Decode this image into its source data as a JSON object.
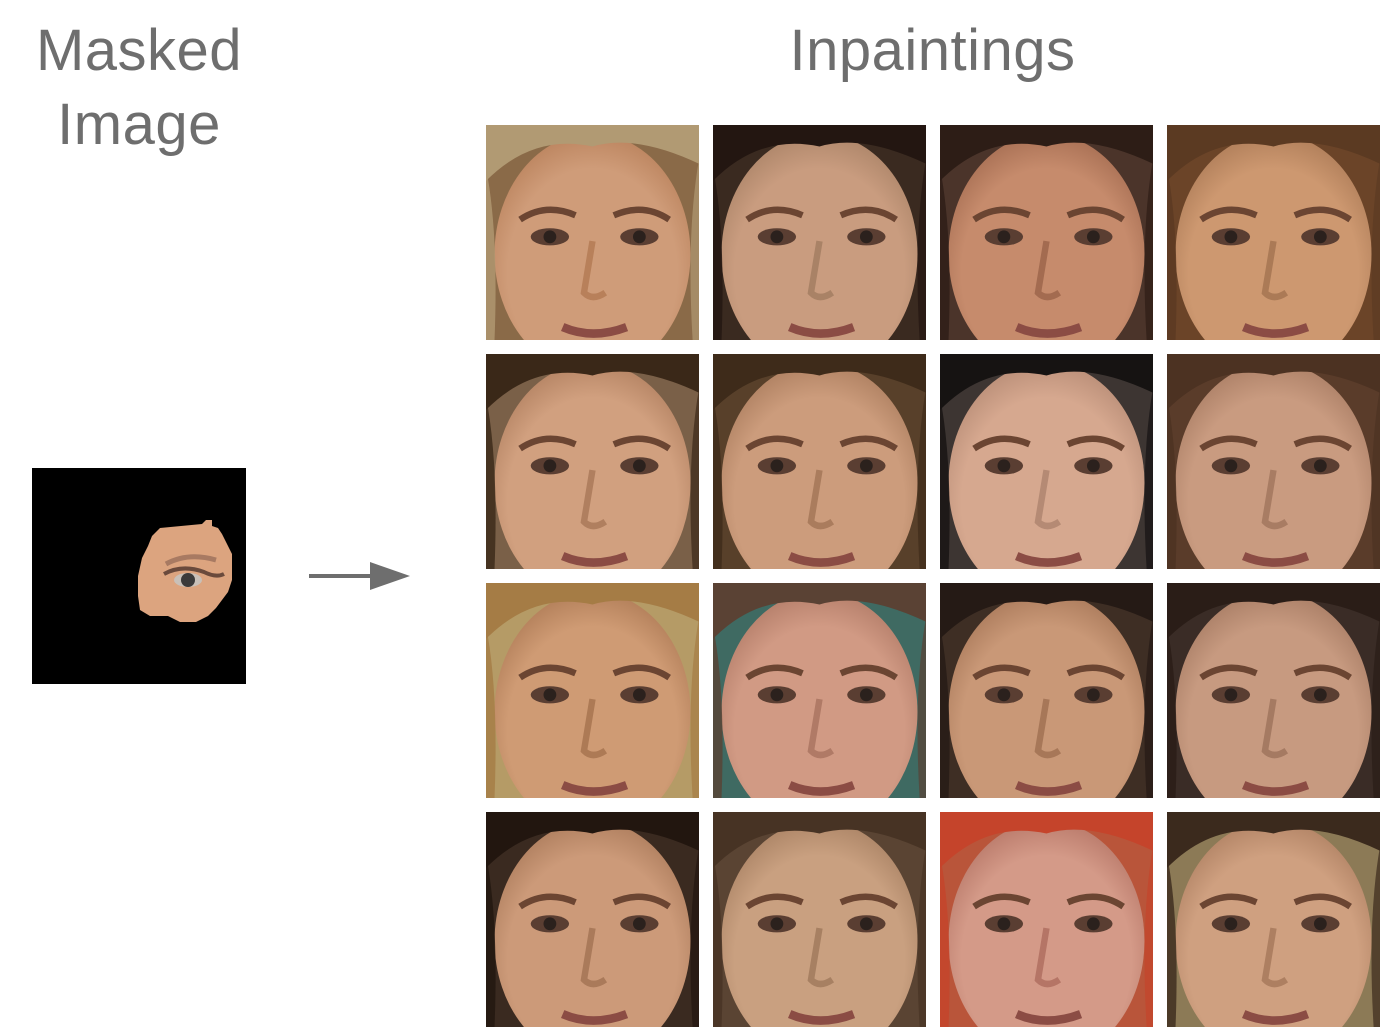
{
  "titles": {
    "masked_image": "Masked\nImage",
    "inpaintings": "Inpaintings"
  },
  "colors": {
    "title_text": "#6e6e6e",
    "arrow": "#6e6e6e",
    "mask_background": "#000000",
    "visible_skin": "#d9a07c"
  },
  "masked_image": {
    "description_icon": "face-eye-patch",
    "skin": "#dca47f",
    "iris": "#3b3a3a"
  },
  "inpaintings": {
    "rows": [
      [
        {
          "skin": "#cf9c79",
          "hair": "#b19a73",
          "bg": "#8a6a48",
          "shade": "#b8805a"
        },
        {
          "skin": "#c99c7f",
          "hair": "#231611",
          "bg": "#3a2a20",
          "shade": "#a98266"
        },
        {
          "skin": "#c68b6c",
          "hair": "#2d1d16",
          "bg": "#4b342a",
          "shade": "#a36b50"
        },
        {
          "skin": "#cd9870",
          "hair": "#5b3a22",
          "bg": "#6b4428",
          "shade": "#ab7a56"
        }
      ],
      [
        {
          "skin": "#d1a07f",
          "hair": "#3a2818",
          "bg": "#7a6048",
          "shade": "#b07f5f"
        },
        {
          "skin": "#cc9c7c",
          "hair": "#3e2b1a",
          "bg": "#58402a",
          "shade": "#aa7c5d"
        },
        {
          "skin": "#d6a88f",
          "hair": "#161312",
          "bg": "#3d3532",
          "shade": "#b58a74"
        },
        {
          "skin": "#c99b80",
          "hair": "#4c3222",
          "bg": "#5a3c2a",
          "shade": "#a87c63"
        }
      ],
      [
        {
          "skin": "#cf9b74",
          "hair": "#a57c45",
          "bg": "#b59b66",
          "shade": "#ad7a55"
        },
        {
          "skin": "#d19a84",
          "hair": "#5a4234",
          "bg": "#3f6a62",
          "shade": "#b07a66"
        },
        {
          "skin": "#c99877",
          "hair": "#251a15",
          "bg": "#3e2e24",
          "shade": "#a77758"
        },
        {
          "skin": "#c79a80",
          "hair": "#2a1d17",
          "bg": "#3a2c26",
          "shade": "#a57a62"
        }
      ],
      [
        {
          "skin": "#cc9a79",
          "hair": "#22160f",
          "bg": "#3a2a20",
          "shade": "#aa7a5a"
        },
        {
          "skin": "#c9a080",
          "hair": "#473324",
          "bg": "#5a4433",
          "shade": "#a78062"
        },
        {
          "skin": "#d49a88",
          "hair": "#c5442b",
          "bg": "#b9553a",
          "shade": "#b57566"
        },
        {
          "skin": "#cfa080",
          "hair": "#3b2a1d",
          "bg": "#8c7a56",
          "shade": "#ad7f61"
        }
      ]
    ]
  }
}
